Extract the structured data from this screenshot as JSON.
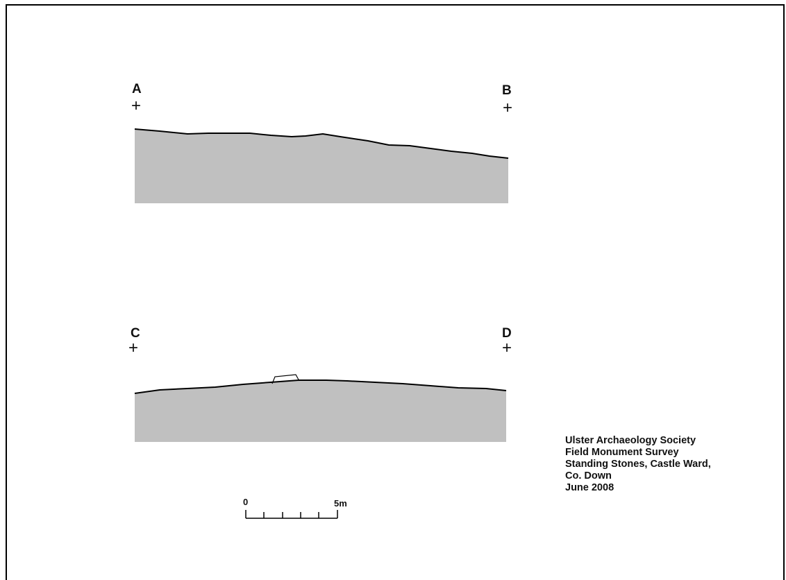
{
  "profiles": [
    {
      "start_label": "A",
      "end_label": "B"
    },
    {
      "start_label": "C",
      "end_label": "D"
    }
  ],
  "scale_bar": {
    "start_label": "0",
    "end_label": "5m"
  },
  "title_block": {
    "lines": [
      "Ulster Archaeology Society",
      "Field Monument Survey",
      "Standing Stones, Castle Ward,",
      "Co. Down",
      "June 2008"
    ]
  },
  "colors": {
    "ground_fill": "#c0c0c0",
    "line": "#000000",
    "frame": "#000000",
    "background": "#ffffff"
  }
}
